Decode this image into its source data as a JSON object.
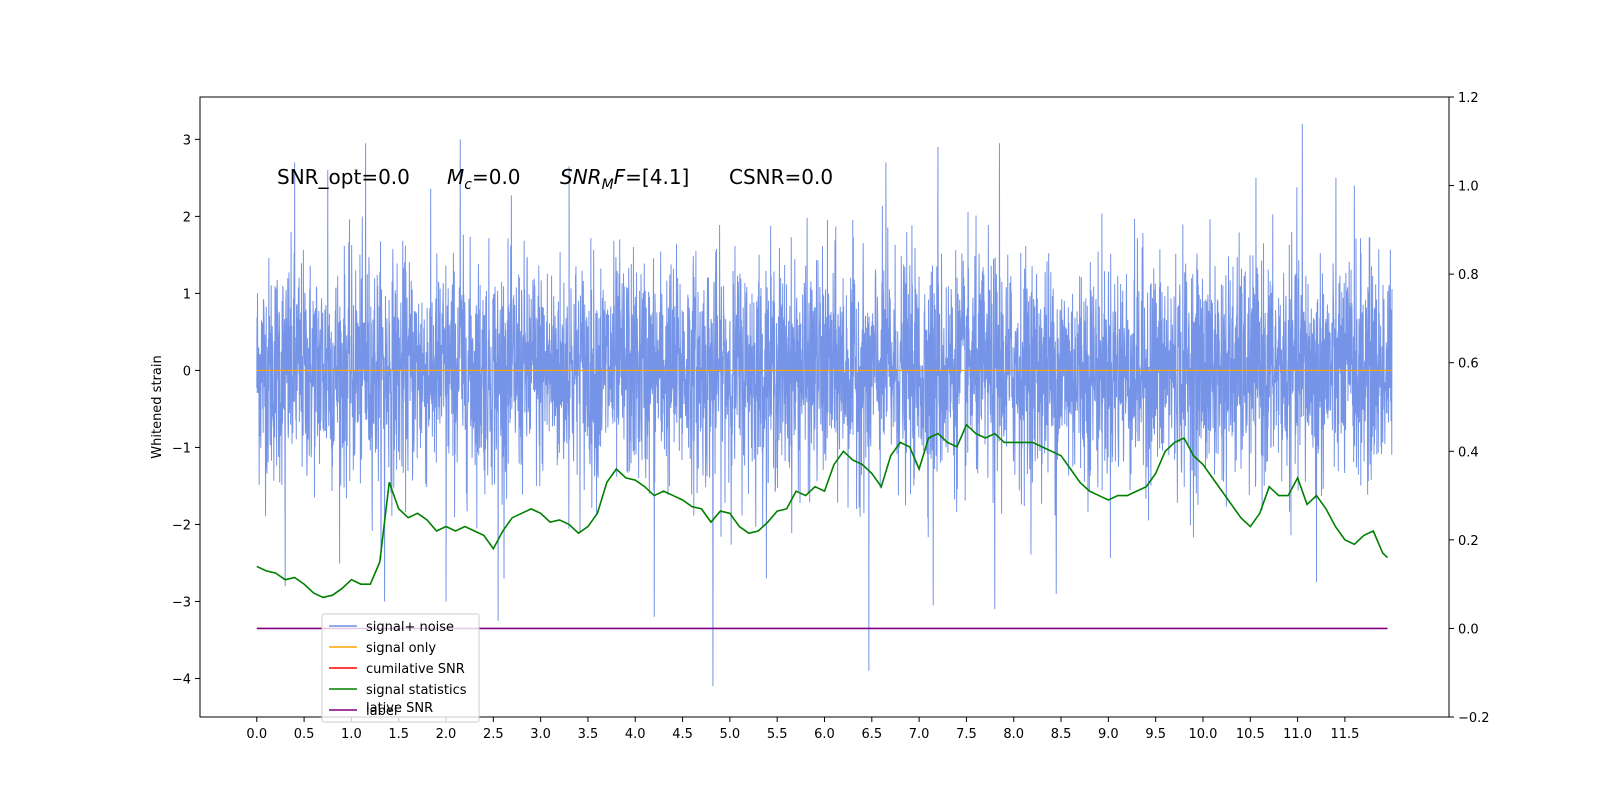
{
  "chart_data": {
    "type": "line",
    "ylabel_left": "Whitened strain",
    "xlim": [
      -0.6,
      12.6
    ],
    "ylim_left": [
      -4.5,
      3.55
    ],
    "ylim_right": [
      -0.2,
      1.2
    ],
    "x_ticks": [
      "0.0",
      "0.5",
      "1.0",
      "1.5",
      "2.0",
      "2.5",
      "3.0",
      "3.5",
      "4.0",
      "4.5",
      "5.0",
      "5.5",
      "6.0",
      "6.5",
      "7.0",
      "7.5",
      "8.0",
      "8.5",
      "9.0",
      "9.5",
      "10.0",
      "10.5",
      "11.0",
      "11.5"
    ],
    "y_ticks_left": [
      "3",
      "2",
      "1",
      "0",
      "−1",
      "−2",
      "−3",
      "−4"
    ],
    "y_ticks_right": [
      "1.2",
      "1.0",
      "0.8",
      "0.6",
      "0.4",
      "0.2",
      "0.0",
      "−0.2"
    ],
    "annotations": {
      "snr_opt": "SNR_opt=0.0",
      "mc_var": "M",
      "mc_sub": "c",
      "mc_rest": "=0.0",
      "snrmf_var": "SNR",
      "snrmf_sub": "M",
      "snrmf_var2": "F",
      "snrmf_rest": "=[4.1]",
      "csnr": "CSNR=0.0"
    },
    "series": [
      {
        "name": "signal+ noise",
        "color": "#6f8ee6",
        "axis": "left",
        "x_range": [
          0.0,
          12.0
        ],
        "typical_range": [
          -1.4,
          1.3
        ],
        "spikes": [
          {
            "x": 0.4,
            "y": 2.7
          },
          {
            "x": 0.75,
            "y": 2.6
          },
          {
            "x": 1.15,
            "y": 2.95
          },
          {
            "x": 2.15,
            "y": 3.0
          },
          {
            "x": 3.3,
            "y": 2.65
          },
          {
            "x": 6.65,
            "y": 2.7
          },
          {
            "x": 7.2,
            "y": 2.9
          },
          {
            "x": 7.85,
            "y": 2.95
          },
          {
            "x": 11.05,
            "y": 3.2
          },
          {
            "x": 11.6,
            "y": 2.4
          },
          {
            "x": 0.3,
            "y": -2.8
          },
          {
            "x": 1.35,
            "y": -3.0
          },
          {
            "x": 2.0,
            "y": -3.0
          },
          {
            "x": 2.55,
            "y": -3.25
          },
          {
            "x": 4.2,
            "y": -3.2
          },
          {
            "x": 4.82,
            "y": -4.1
          },
          {
            "x": 6.47,
            "y": -3.9
          },
          {
            "x": 7.15,
            "y": -3.05
          },
          {
            "x": 7.8,
            "y": -3.1
          },
          {
            "x": 8.45,
            "y": -2.9
          },
          {
            "x": 11.2,
            "y": -2.75
          }
        ]
      },
      {
        "name": "signal only",
        "color": "#ffa500",
        "axis": "left",
        "x": [
          0.0,
          12.0
        ],
        "y": [
          0.0,
          0.0
        ]
      },
      {
        "name": "cumilative SNR",
        "color": "#ff0000",
        "axis": "right",
        "x": [],
        "y": []
      },
      {
        "name": "signal statistics",
        "color": "#008000",
        "axis": "right",
        "x": [
          0.0,
          0.1,
          0.2,
          0.3,
          0.4,
          0.5,
          0.6,
          0.7,
          0.8,
          0.9,
          1.0,
          1.1,
          1.2,
          1.3,
          1.4,
          1.5,
          1.6,
          1.7,
          1.8,
          1.9,
          2.0,
          2.1,
          2.2,
          2.3,
          2.4,
          2.5,
          2.6,
          2.7,
          2.8,
          2.9,
          3.0,
          3.1,
          3.2,
          3.3,
          3.4,
          3.5,
          3.6,
          3.7,
          3.8,
          3.9,
          4.0,
          4.1,
          4.2,
          4.3,
          4.4,
          4.5,
          4.6,
          4.7,
          4.8,
          4.9,
          5.0,
          5.1,
          5.2,
          5.3,
          5.4,
          5.5,
          5.6,
          5.7,
          5.8,
          5.9,
          6.0,
          6.1,
          6.2,
          6.3,
          6.4,
          6.5,
          6.6,
          6.7,
          6.8,
          6.9,
          7.0,
          7.1,
          7.2,
          7.3,
          7.4,
          7.5,
          7.6,
          7.7,
          7.8,
          7.9,
          8.0,
          8.1,
          8.2,
          8.3,
          8.4,
          8.5,
          8.6,
          8.7,
          8.8,
          8.9,
          9.0,
          9.1,
          9.2,
          9.3,
          9.4,
          9.5,
          9.6,
          9.7,
          9.8,
          9.9,
          10.0,
          10.1,
          10.2,
          10.3,
          10.4,
          10.5,
          10.6,
          10.7,
          10.8,
          10.9,
          11.0,
          11.1,
          11.2,
          11.3,
          11.4,
          11.5,
          11.6,
          11.7,
          11.8,
          11.9,
          11.95
        ],
        "y": [
          0.14,
          0.13,
          0.125,
          0.11,
          0.115,
          0.1,
          0.08,
          0.07,
          0.075,
          0.09,
          0.11,
          0.1,
          0.1,
          0.15,
          0.33,
          0.27,
          0.25,
          0.26,
          0.245,
          0.22,
          0.23,
          0.22,
          0.23,
          0.22,
          0.21,
          0.18,
          0.22,
          0.25,
          0.26,
          0.27,
          0.26,
          0.24,
          0.245,
          0.235,
          0.215,
          0.23,
          0.26,
          0.33,
          0.36,
          0.34,
          0.335,
          0.32,
          0.3,
          0.31,
          0.3,
          0.29,
          0.275,
          0.27,
          0.24,
          0.265,
          0.26,
          0.23,
          0.215,
          0.22,
          0.24,
          0.265,
          0.27,
          0.31,
          0.3,
          0.32,
          0.31,
          0.37,
          0.4,
          0.38,
          0.37,
          0.35,
          0.32,
          0.39,
          0.42,
          0.41,
          0.36,
          0.43,
          0.44,
          0.42,
          0.41,
          0.46,
          0.44,
          0.43,
          0.44,
          0.42,
          0.42,
          0.42,
          0.42,
          0.41,
          0.4,
          0.39,
          0.36,
          0.33,
          0.31,
          0.3,
          0.29,
          0.3,
          0.3,
          0.31,
          0.32,
          0.35,
          0.4,
          0.42,
          0.43,
          0.39,
          0.37,
          0.34,
          0.31,
          0.28,
          0.25,
          0.23,
          0.26,
          0.32,
          0.3,
          0.3,
          0.34,
          0.28,
          0.3,
          0.27,
          0.23,
          0.2,
          0.19,
          0.21,
          0.22,
          0.17,
          0.16
        ]
      },
      {
        "name": "label",
        "color": "#800080",
        "axis": "right",
        "x": [
          0.0,
          11.95
        ],
        "y": [
          0.0,
          0.0
        ]
      }
    ],
    "legend": {
      "position": "lower-left",
      "entries": [
        {
          "label": "signal+ noise",
          "color": "#6f8ee6"
        },
        {
          "label": "signal only",
          "color": "#ffa500"
        },
        {
          "label": "cumilative SNR",
          "color": "#ff0000"
        },
        {
          "label": "signal statistics",
          "color": "#008000"
        },
        {
          "label": "label",
          "color": "#800080"
        }
      ],
      "ghost_text": "lative SNR"
    }
  }
}
